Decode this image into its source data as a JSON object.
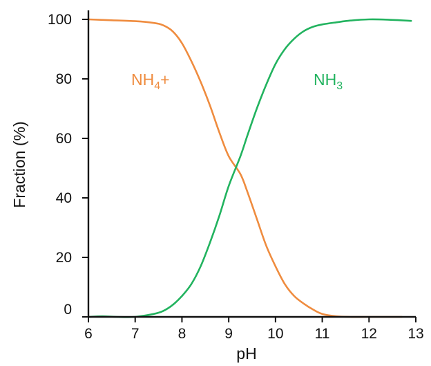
{
  "chart_data": {
    "type": "line",
    "xlabel": "pH",
    "ylabel": "Fraction (%)",
    "xlim": [
      6,
      13
    ],
    "ylim": [
      0,
      100
    ],
    "x_ticks": [
      6,
      7,
      8,
      9,
      10,
      11,
      12,
      13
    ],
    "y_ticks": [
      0,
      20,
      40,
      60,
      80,
      100
    ],
    "grid": false,
    "legend": "inline labels",
    "series": [
      {
        "name": "NH4+",
        "label_main": "NH",
        "label_sub": "4",
        "label_suffix": "+",
        "color": "#ef8c3f",
        "x": [
          6.0,
          6.5,
          7.0,
          7.4,
          7.6,
          7.8,
          8.0,
          8.2,
          8.4,
          8.6,
          8.8,
          9.0,
          9.25,
          9.4,
          9.6,
          9.8,
          10.0,
          10.2,
          10.4,
          10.6,
          10.8,
          11.0,
          11.3,
          11.6,
          12.0,
          12.7
        ],
        "y": [
          100,
          99.7,
          99.4,
          98.8,
          98.0,
          96.0,
          92.0,
          86.0,
          79.0,
          71.0,
          62.0,
          54.0,
          48.0,
          42.0,
          33.0,
          24.0,
          17.0,
          11.0,
          7.0,
          4.5,
          2.5,
          1.0,
          0.2,
          0.0,
          0.0,
          0.0
        ]
      },
      {
        "name": "NH3",
        "label_main": "NH",
        "label_sub": "3",
        "label_suffix": "",
        "color": "#22b35f",
        "x": [
          6.0,
          6.3,
          6.6,
          7.0,
          7.4,
          7.6,
          7.8,
          8.0,
          8.2,
          8.4,
          8.6,
          8.8,
          9.0,
          9.25,
          9.4,
          9.6,
          9.8,
          10.0,
          10.2,
          10.4,
          10.6,
          10.8,
          11.0,
          11.3,
          11.6,
          12.0,
          12.4,
          12.9
        ],
        "y": [
          0.0,
          0.2,
          0.0,
          0.0,
          1.0,
          2.0,
          4.0,
          7.0,
          11.0,
          17.0,
          25.0,
          34.0,
          44.0,
          54.0,
          61.0,
          70.0,
          78.0,
          85.0,
          90.0,
          93.5,
          96.0,
          97.5,
          98.3,
          99.0,
          99.6,
          100.0,
          99.9,
          99.5
        ]
      }
    ]
  }
}
